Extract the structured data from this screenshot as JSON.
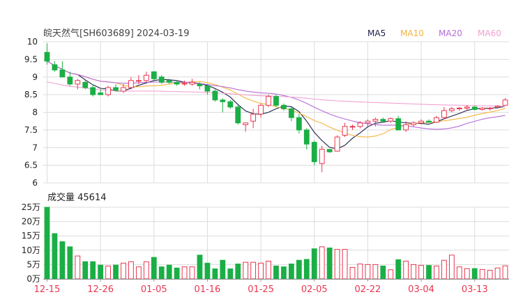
{
  "title": "皖天然气[SH603689] 2024-03-19",
  "legend": [
    {
      "name": "MA5",
      "color": "#1c1c4a"
    },
    {
      "name": "MA10",
      "color": "#f4b43c"
    },
    {
      "name": "MA20",
      "color": "#b56bd8"
    },
    {
      "name": "MA60",
      "color": "#f2a0d2"
    }
  ],
  "volume_label": "成交量 45614",
  "colors": {
    "up": "#e8364f",
    "down": "#1aaf45",
    "grid": "#dcdcdc",
    "axis_text": "#222222",
    "date_text": "#e8364f"
  },
  "chart_data": [
    {
      "type": "candlestick",
      "title": "皖天然气[SH603689] 2024-03-19",
      "ylim": [
        6,
        10
      ],
      "y_ticks": [
        "10",
        "9.5",
        "9",
        "8.5",
        "8",
        "7.5",
        "7",
        "6.5",
        "6"
      ],
      "x_tick_labels": [
        {
          "label": "12-15",
          "index": 0
        },
        {
          "label": "12-26",
          "index": 7
        },
        {
          "label": "01-05",
          "index": 14
        },
        {
          "label": "01-16",
          "index": 21
        },
        {
          "label": "01-25",
          "index": 28
        },
        {
          "label": "02-05",
          "index": 35
        },
        {
          "label": "02-22",
          "index": 42
        },
        {
          "label": "03-04",
          "index": 49
        },
        {
          "label": "03-13",
          "index": 56
        }
      ],
      "candles": [
        {
          "o": 9.7,
          "h": 9.95,
          "l": 9.35,
          "c": 9.45
        },
        {
          "o": 9.35,
          "h": 9.45,
          "l": 9.15,
          "c": 9.2
        },
        {
          "o": 9.2,
          "h": 9.45,
          "l": 9.0,
          "c": 9.0
        },
        {
          "o": 9.0,
          "h": 9.15,
          "l": 8.75,
          "c": 8.8
        },
        {
          "o": 8.8,
          "h": 8.95,
          "l": 8.65,
          "c": 8.9
        },
        {
          "o": 8.85,
          "h": 8.95,
          "l": 8.65,
          "c": 8.7
        },
        {
          "o": 8.7,
          "h": 8.8,
          "l": 8.45,
          "c": 8.5
        },
        {
          "o": 8.55,
          "h": 8.65,
          "l": 8.5,
          "c": 8.5
        },
        {
          "o": 8.5,
          "h": 8.75,
          "l": 8.45,
          "c": 8.7
        },
        {
          "o": 8.7,
          "h": 8.8,
          "l": 8.6,
          "c": 8.62
        },
        {
          "o": 8.6,
          "h": 8.8,
          "l": 8.55,
          "c": 8.7
        },
        {
          "o": 8.7,
          "h": 9.0,
          "l": 8.65,
          "c": 8.9
        },
        {
          "o": 8.9,
          "h": 9.05,
          "l": 8.8,
          "c": 8.9
        },
        {
          "o": 8.9,
          "h": 9.15,
          "l": 8.85,
          "c": 9.05
        },
        {
          "o": 9.15,
          "h": 9.15,
          "l": 8.9,
          "c": 8.95
        },
        {
          "o": 9.0,
          "h": 9.05,
          "l": 8.8,
          "c": 8.85
        },
        {
          "o": 8.9,
          "h": 8.95,
          "l": 8.8,
          "c": 8.85
        },
        {
          "o": 8.85,
          "h": 8.9,
          "l": 8.75,
          "c": 8.8
        },
        {
          "o": 8.8,
          "h": 8.9,
          "l": 8.75,
          "c": 8.82
        },
        {
          "o": 8.8,
          "h": 8.95,
          "l": 8.75,
          "c": 8.85
        },
        {
          "o": 8.8,
          "h": 8.85,
          "l": 8.65,
          "c": 8.75
        },
        {
          "o": 8.75,
          "h": 8.8,
          "l": 8.5,
          "c": 8.6
        },
        {
          "o": 8.6,
          "h": 8.65,
          "l": 8.3,
          "c": 8.35
        },
        {
          "o": 8.35,
          "h": 8.4,
          "l": 8.0,
          "c": 8.3
        },
        {
          "o": 8.3,
          "h": 8.35,
          "l": 8.1,
          "c": 8.15
        },
        {
          "o": 8.15,
          "h": 8.2,
          "l": 7.65,
          "c": 7.7
        },
        {
          "o": 7.65,
          "h": 7.7,
          "l": 7.45,
          "c": 7.7
        },
        {
          "o": 7.75,
          "h": 8.1,
          "l": 7.55,
          "c": 7.95
        },
        {
          "o": 7.95,
          "h": 8.25,
          "l": 7.85,
          "c": 8.2
        },
        {
          "o": 8.2,
          "h": 8.5,
          "l": 8.15,
          "c": 8.45
        },
        {
          "o": 8.45,
          "h": 8.5,
          "l": 8.15,
          "c": 8.2
        },
        {
          "o": 8.2,
          "h": 8.25,
          "l": 8.05,
          "c": 8.1
        },
        {
          "o": 8.1,
          "h": 8.15,
          "l": 7.75,
          "c": 7.85
        },
        {
          "o": 7.85,
          "h": 7.95,
          "l": 7.4,
          "c": 7.5
        },
        {
          "o": 7.5,
          "h": 7.55,
          "l": 6.95,
          "c": 7.1
        },
        {
          "o": 7.15,
          "h": 7.2,
          "l": 6.5,
          "c": 6.6
        },
        {
          "o": 6.55,
          "h": 7.05,
          "l": 6.3,
          "c": 6.95
        },
        {
          "o": 6.95,
          "h": 6.95,
          "l": 6.85,
          "c": 6.88
        },
        {
          "o": 6.9,
          "h": 7.35,
          "l": 6.9,
          "c": 7.3
        },
        {
          "o": 7.35,
          "h": 7.7,
          "l": 7.3,
          "c": 7.6
        },
        {
          "o": 7.6,
          "h": 7.65,
          "l": 7.5,
          "c": 7.6
        },
        {
          "o": 7.6,
          "h": 7.75,
          "l": 7.55,
          "c": 7.7
        },
        {
          "o": 7.7,
          "h": 7.8,
          "l": 7.6,
          "c": 7.75
        },
        {
          "o": 7.75,
          "h": 7.85,
          "l": 7.6,
          "c": 7.8
        },
        {
          "o": 7.8,
          "h": 7.85,
          "l": 7.7,
          "c": 7.75
        },
        {
          "o": 7.75,
          "h": 7.85,
          "l": 7.7,
          "c": 7.82
        },
        {
          "o": 7.82,
          "h": 7.9,
          "l": 7.5,
          "c": 7.5
        },
        {
          "o": 7.5,
          "h": 7.75,
          "l": 7.45,
          "c": 7.65
        },
        {
          "o": 7.65,
          "h": 7.75,
          "l": 7.6,
          "c": 7.7
        },
        {
          "o": 7.7,
          "h": 7.8,
          "l": 7.65,
          "c": 7.75
        },
        {
          "o": 7.75,
          "h": 7.8,
          "l": 7.7,
          "c": 7.72
        },
        {
          "o": 7.72,
          "h": 7.9,
          "l": 7.7,
          "c": 7.85
        },
        {
          "o": 7.85,
          "h": 8.15,
          "l": 7.8,
          "c": 8.05
        },
        {
          "o": 8.05,
          "h": 8.15,
          "l": 8.0,
          "c": 8.1
        },
        {
          "o": 8.1,
          "h": 8.15,
          "l": 8.05,
          "c": 8.12
        },
        {
          "o": 8.12,
          "h": 8.2,
          "l": 8.05,
          "c": 8.15
        },
        {
          "o": 8.15,
          "h": 8.18,
          "l": 8.05,
          "c": 8.08
        },
        {
          "o": 8.08,
          "h": 8.15,
          "l": 8.05,
          "c": 8.12
        },
        {
          "o": 8.1,
          "h": 8.15,
          "l": 8.05,
          "c": 8.12
        },
        {
          "o": 8.15,
          "h": 8.2,
          "l": 8.1,
          "c": 8.18
        },
        {
          "o": 8.2,
          "h": 8.4,
          "l": 8.2,
          "c": 8.35
        }
      ]
    },
    {
      "type": "bar",
      "title": "成交量 45614",
      "y_ticks": [
        "25万",
        "20万",
        "15万",
        "10万",
        "5万",
        "0万"
      ],
      "ylim": [
        0,
        250000
      ],
      "values": [
        250000,
        158000,
        130000,
        112000,
        80000,
        60000,
        60000,
        48000,
        45000,
        48000,
        55000,
        60000,
        42000,
        60000,
        75000,
        42000,
        48000,
        38000,
        42000,
        42000,
        83000,
        55000,
        35000,
        65000,
        35000,
        52000,
        58000,
        58000,
        55000,
        62000,
        45000,
        42000,
        52000,
        65000,
        68000,
        105000,
        112000,
        108000,
        103000,
        103000,
        40000,
        52000,
        50000,
        50000,
        45000,
        32000,
        67000,
        62000,
        50000,
        47000,
        47000,
        45000,
        65000,
        83000,
        42000,
        36000,
        36000,
        33000,
        30000,
        38000,
        45614
      ]
    }
  ]
}
